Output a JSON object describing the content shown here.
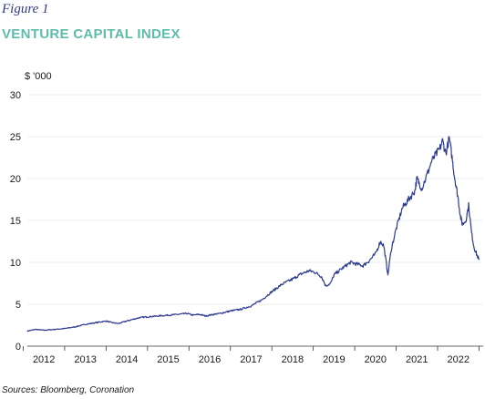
{
  "header": {
    "figure_label": "Figure 1",
    "title": "VENTURE CAPITAL INDEX"
  },
  "footer": {
    "source": "Sources: Bloomberg, Coronation"
  },
  "colors": {
    "title": "#5cbda8",
    "figure_label": "#2f3a7d",
    "series": "#2b3990",
    "axis": "#333333",
    "grid": "#d9d9d9"
  },
  "chart_data": {
    "type": "line",
    "title": "VENTURE CAPITAL INDEX",
    "xlabel": "",
    "ylabel": "$ '000",
    "xlim": [
      2011.6,
      2022.6
    ],
    "ylim": [
      0,
      30
    ],
    "y_ticks": [
      0,
      5,
      10,
      15,
      20,
      25,
      30
    ],
    "x_ticks": [
      "2012",
      "2013",
      "2014",
      "2015",
      "2016",
      "2017",
      "2018",
      "2019",
      "2020",
      "2021",
      "2022"
    ],
    "grid": true,
    "legend": "none",
    "series": [
      {
        "name": "",
        "x": [
          2011.6,
          2011.8,
          2012.0,
          2012.25,
          2012.5,
          2012.75,
          2013.0,
          2013.25,
          2013.5,
          2013.65,
          2013.8,
          2014.0,
          2014.15,
          2014.3,
          2014.5,
          2014.75,
          2015.0,
          2015.25,
          2015.45,
          2015.6,
          2015.75,
          2015.9,
          2016.1,
          2016.25,
          2016.5,
          2016.75,
          2017.0,
          2017.25,
          2017.5,
          2017.75,
          2018.0,
          2018.2,
          2018.4,
          2018.55,
          2018.7,
          2018.8,
          2018.92,
          2019.0,
          2019.2,
          2019.4,
          2019.55,
          2019.7,
          2019.85,
          2020.0,
          2020.12,
          2020.2,
          2020.26,
          2020.3,
          2020.38,
          2020.5,
          2020.65,
          2020.8,
          2020.95,
          2021.0,
          2021.05,
          2021.12,
          2021.25,
          2021.35,
          2021.45,
          2021.55,
          2021.62,
          2021.7,
          2021.78,
          2021.85,
          2021.9,
          2021.95,
          2022.0,
          2022.05,
          2022.1,
          2022.18,
          2022.25,
          2022.32,
          2022.38,
          2022.44,
          2022.5
        ],
        "values": [
          1.8,
          2.0,
          1.9,
          2.0,
          2.1,
          2.3,
          2.6,
          2.8,
          3.0,
          2.8,
          2.7,
          3.0,
          3.2,
          3.4,
          3.5,
          3.6,
          3.7,
          3.8,
          3.9,
          3.7,
          3.8,
          3.6,
          3.8,
          3.9,
          4.2,
          4.4,
          4.8,
          5.5,
          6.5,
          7.4,
          8.0,
          8.6,
          9.0,
          8.8,
          8.3,
          7.2,
          7.5,
          8.5,
          9.3,
          10.0,
          9.8,
          9.6,
          10.2,
          11.0,
          12.5,
          12.0,
          10.0,
          8.5,
          11.5,
          14.0,
          16.5,
          17.5,
          18.5,
          20.0,
          19.5,
          18.8,
          20.5,
          22.0,
          22.8,
          23.5,
          24.5,
          23.0,
          24.8,
          22.5,
          20.5,
          19.0,
          17.5,
          15.5,
          14.5,
          15.0,
          16.8,
          13.5,
          11.8,
          11.0,
          10.3
        ]
      }
    ]
  }
}
